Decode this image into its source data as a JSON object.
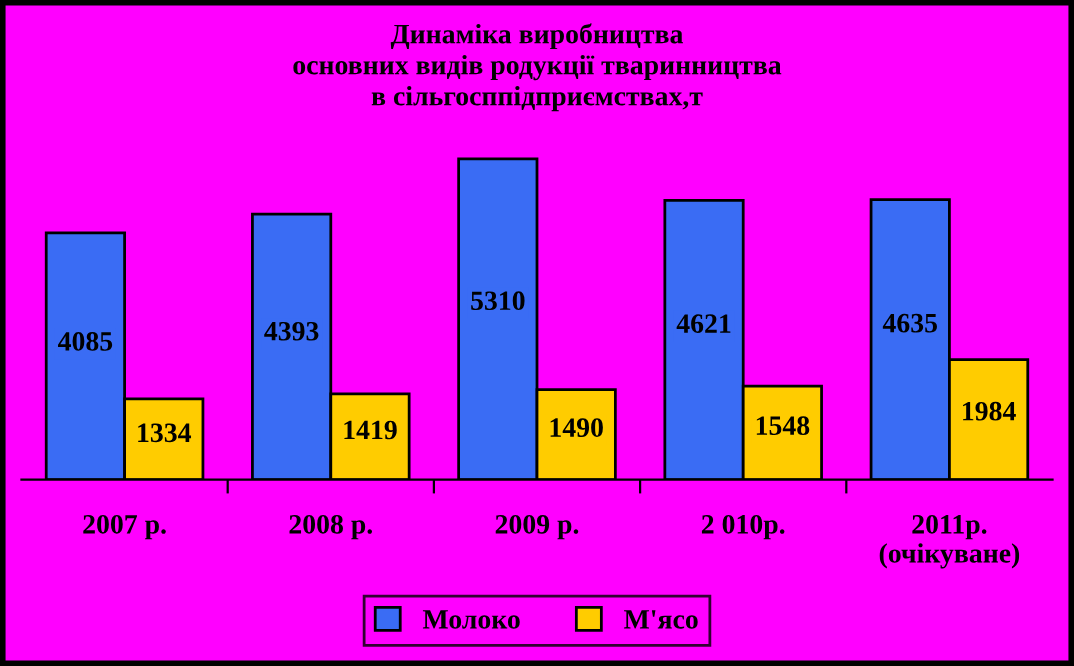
{
  "chart_data": {
    "type": "bar",
    "title": "Динаміка виробництва\nосновних видів родукції тваринництва\nв сільгосппідприємствах,т",
    "categories": [
      "2007 р.",
      "2008 р.",
      "2009 р.",
      "2 010р.",
      "2011р.\n(очікуване)"
    ],
    "series": [
      {
        "name": "Молоко",
        "color": "#3a6cf4",
        "values": [
          4085,
          4393,
          5310,
          4621,
          4635
        ]
      },
      {
        "name": "М'ясо",
        "color": "#ffcc00",
        "values": [
          1334,
          1419,
          1490,
          1548,
          1984
        ]
      }
    ],
    "data_labels": true,
    "legend": "bottom",
    "grid": false
  }
}
